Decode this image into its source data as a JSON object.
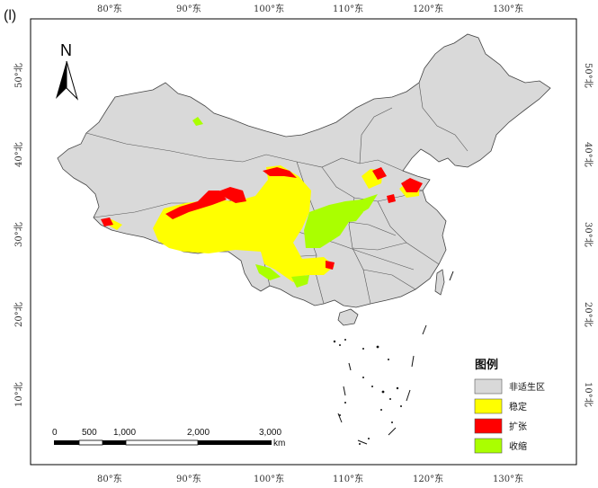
{
  "panel_label": "(l)",
  "north_label": "N",
  "top_ticks": [
    "80°东",
    "90°东",
    "100°东",
    "110°东",
    "120°东",
    "130°东"
  ],
  "bottom_ticks": [
    "80°东",
    "90°东",
    "100°东",
    "110°东",
    "120°东",
    "130°东"
  ],
  "left_ticks": [
    "50°北",
    "40°北",
    "30°北",
    "20°北",
    "10°北"
  ],
  "right_ticks": [
    "50°北",
    "40°北",
    "30°北",
    "20°北",
    "10°北"
  ],
  "legend": {
    "title": "图例",
    "items": [
      {
        "label": "非适生区",
        "color": "#d9d9d9"
      },
      {
        "label": "稳定",
        "color": "#ffff00"
      },
      {
        "label": "扩张",
        "color": "#ff0000"
      },
      {
        "label": "收缩",
        "color": "#aaff00"
      }
    ]
  },
  "scale_bar": {
    "labels": [
      "0",
      "500",
      "1,000",
      "2,000",
      "3,000"
    ],
    "unit": "km"
  }
}
